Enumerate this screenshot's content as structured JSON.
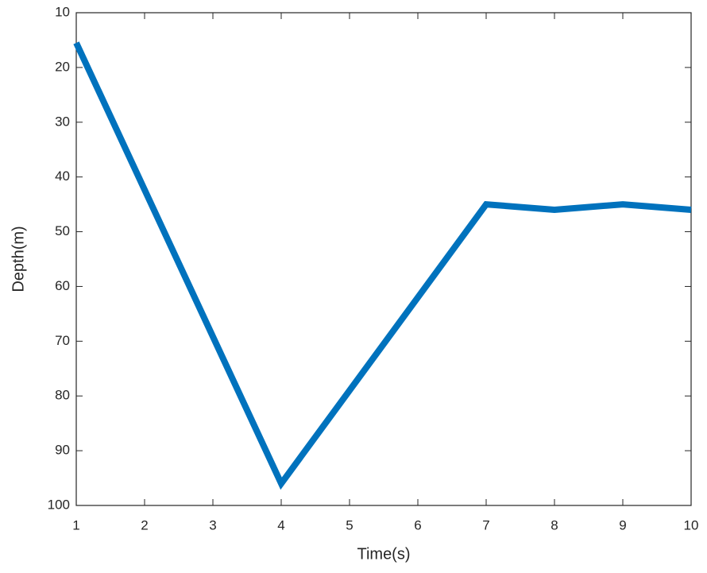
{
  "chart_data": {
    "type": "line",
    "xlabel": "Time(s)",
    "ylabel": "Depth(m)",
    "x": [
      1,
      4,
      7,
      8,
      9,
      10
    ],
    "series": [
      {
        "color": "#0072bd",
        "values": [
          15.5,
          96,
          45,
          46,
          45,
          46
        ]
      }
    ],
    "xlim": [
      1,
      10
    ],
    "xticks": [
      1,
      2,
      3,
      4,
      5,
      6,
      7,
      8,
      9,
      10
    ],
    "ylim": [
      10,
      100
    ],
    "yticks": [
      10,
      20,
      30,
      40,
      50,
      60,
      70,
      80,
      90,
      100
    ],
    "y_reversed": true,
    "box": true,
    "grid": false
  }
}
